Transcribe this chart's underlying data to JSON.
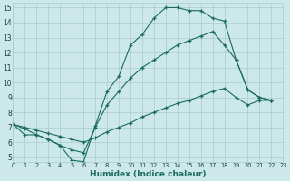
{
  "bg_color": "#cce8e8",
  "grid_color": "#aacccc",
  "line_color": "#1a6b5a",
  "xlabel": "Humidex (Indice chaleur)",
  "xlim": [
    0,
    23
  ],
  "ylim": [
    4.7,
    15.3
  ],
  "xtick_vals": [
    0,
    1,
    2,
    3,
    4,
    5,
    6,
    7,
    8,
    9,
    10,
    11,
    12,
    13,
    14,
    15,
    16,
    17,
    18,
    19,
    20,
    21,
    22,
    23
  ],
  "ytick_vals": [
    5,
    6,
    7,
    8,
    9,
    10,
    11,
    12,
    13,
    14,
    15
  ],
  "line1_x": [
    0,
    1,
    2,
    3,
    4,
    5,
    6,
    7,
    8,
    9,
    10,
    11,
    12,
    13,
    14,
    15,
    16,
    17,
    18,
    19,
    20,
    21,
    22
  ],
  "line1_y": [
    7.2,
    6.9,
    6.5,
    6.2,
    5.8,
    4.8,
    4.7,
    7.1,
    9.4,
    10.4,
    12.5,
    13.2,
    14.3,
    15.0,
    15.0,
    14.8,
    14.8,
    14.3,
    14.1,
    11.5,
    9.5,
    9.0,
    8.8
  ],
  "line2_x": [
    0,
    1,
    2,
    3,
    4,
    5,
    6,
    7,
    8,
    9,
    10,
    11,
    12,
    13,
    14,
    15,
    16,
    17,
    18,
    19,
    20,
    21,
    22
  ],
  "line2_y": [
    7.2,
    6.5,
    6.5,
    6.2,
    5.8,
    5.5,
    5.3,
    7.0,
    8.5,
    9.4,
    10.3,
    11.0,
    11.5,
    12.0,
    12.5,
    12.8,
    13.1,
    13.4,
    12.5,
    11.5,
    9.5,
    9.0,
    8.8
  ],
  "line3_x": [
    0,
    1,
    2,
    3,
    4,
    5,
    6,
    7,
    8,
    9,
    10,
    11,
    12,
    13,
    14,
    15,
    16,
    17,
    18,
    19,
    20,
    21,
    22
  ],
  "line3_y": [
    7.2,
    7.0,
    6.8,
    6.6,
    6.4,
    6.2,
    6.0,
    6.3,
    6.7,
    7.0,
    7.3,
    7.7,
    8.0,
    8.3,
    8.6,
    8.8,
    9.1,
    9.4,
    9.6,
    9.0,
    8.5,
    8.8,
    8.8
  ]
}
